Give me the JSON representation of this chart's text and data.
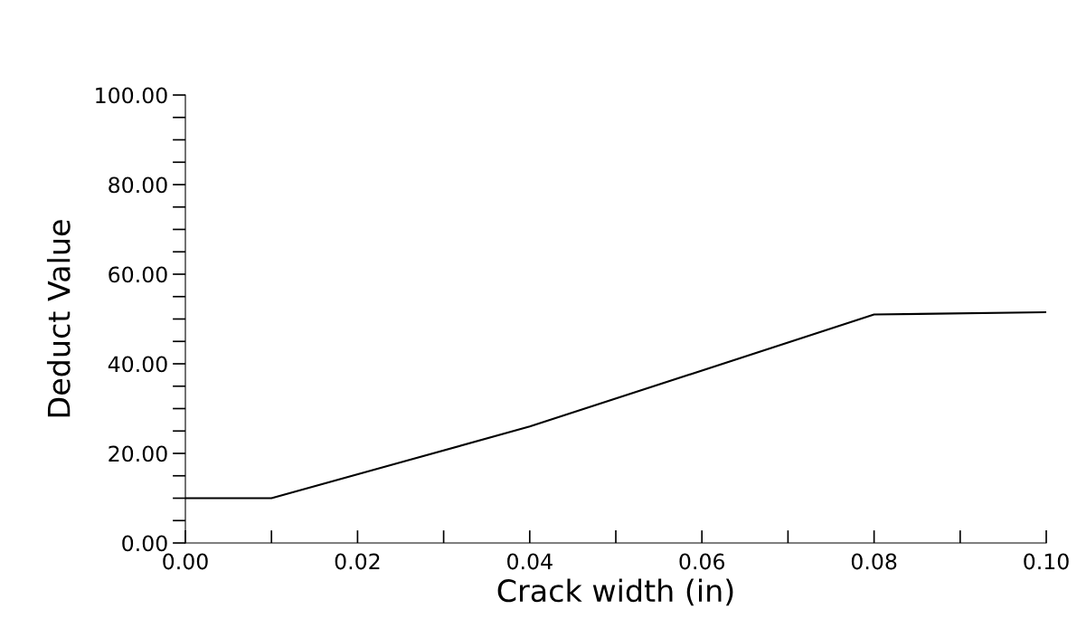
{
  "chart_data": {
    "type": "line",
    "xlabel": "Crack width (in)",
    "ylabel": "Deduct Value",
    "x": [
      0,
      0.01,
      0.04,
      0.08,
      0.1
    ],
    "series": [
      {
        "color": "#000000",
        "values": [
          10,
          10,
          26,
          51,
          51.5
        ]
      }
    ],
    "xlim": [
      0,
      0.1
    ],
    "ylim": [
      0,
      100
    ],
    "xticks": [
      {
        "value": 0,
        "label": "0.00"
      },
      {
        "value": 0.01,
        "label": null
      },
      {
        "value": 0.02,
        "label": "0.02"
      },
      {
        "value": 0.03,
        "label": null
      },
      {
        "value": 0.04,
        "label": "0.04"
      },
      {
        "value": 0.05,
        "label": null
      },
      {
        "value": 0.06,
        "label": "0.06"
      },
      {
        "value": 0.07,
        "label": null
      },
      {
        "value": 0.08,
        "label": "0.08"
      },
      {
        "value": 0.09,
        "label": null
      },
      {
        "value": 0.1,
        "label": "0.10"
      }
    ],
    "yticks": [
      {
        "value": 0,
        "label": "0.00"
      },
      {
        "value": 5,
        "label": null
      },
      {
        "value": 10,
        "label": null
      },
      {
        "value": 15,
        "label": null
      },
      {
        "value": 20,
        "label": "20.00"
      },
      {
        "value": 25,
        "label": null
      },
      {
        "value": 30,
        "label": null
      },
      {
        "value": 35,
        "label": null
      },
      {
        "value": 40,
        "label": "40.00"
      },
      {
        "value": 45,
        "label": null
      },
      {
        "value": 50,
        "label": null
      },
      {
        "value": 55,
        "label": null
      },
      {
        "value": 60,
        "label": "60.00"
      },
      {
        "value": 65,
        "label": null
      },
      {
        "value": 70,
        "label": null
      },
      {
        "value": 75,
        "label": null
      },
      {
        "value": 80,
        "label": "80.00"
      },
      {
        "value": 85,
        "label": null
      },
      {
        "value": 90,
        "label": null
      },
      {
        "value": 95,
        "label": null
      },
      {
        "value": 100,
        "label": "100.00"
      }
    ],
    "grid": false,
    "marker": "none",
    "line_style": "solid"
  }
}
